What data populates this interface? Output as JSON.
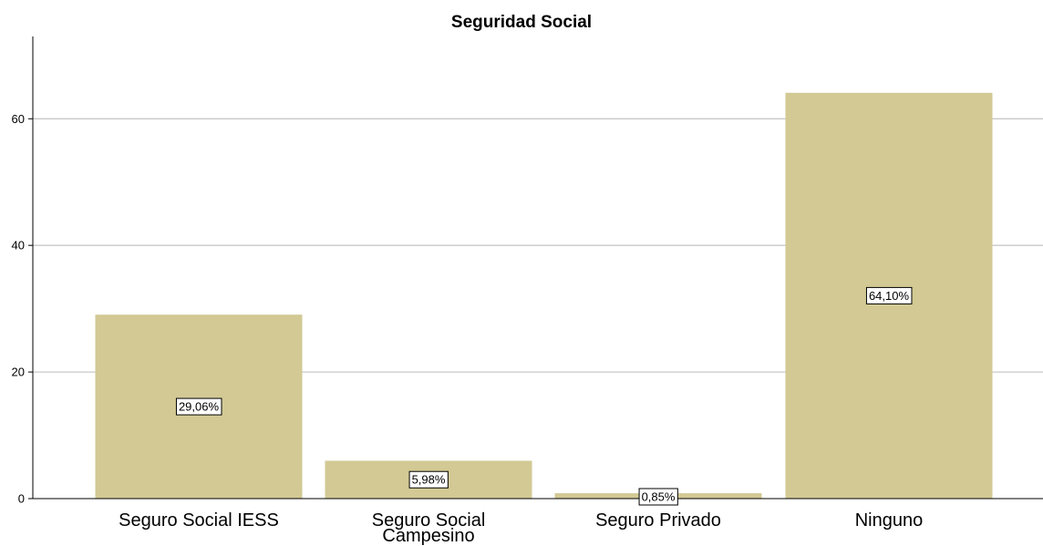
{
  "chart_data": {
    "type": "bar",
    "title": "Seguridad Social",
    "xlabel": "",
    "ylabel": "",
    "categories": [
      [
        "Seguro Social IESS"
      ],
      [
        "Seguro Social",
        "Campesino"
      ],
      [
        "Seguro Privado"
      ],
      [
        "Ninguno"
      ]
    ],
    "values": [
      29.06,
      5.98,
      0.85,
      64.1
    ],
    "data_labels": [
      "29,06%",
      "5,98%",
      "0,85%",
      "64,10%"
    ],
    "ylim": [
      0,
      73
    ],
    "yticks": [
      0,
      20,
      40,
      60
    ],
    "ytick_labels": [
      "0",
      "20",
      "40",
      "60"
    ],
    "grid": true,
    "colors": {
      "bar": "#d2c994",
      "grid": "#c8c8c8",
      "axis": "#000000",
      "label_box_border": "#000000",
      "label_box_fill": "#ffffff"
    }
  }
}
